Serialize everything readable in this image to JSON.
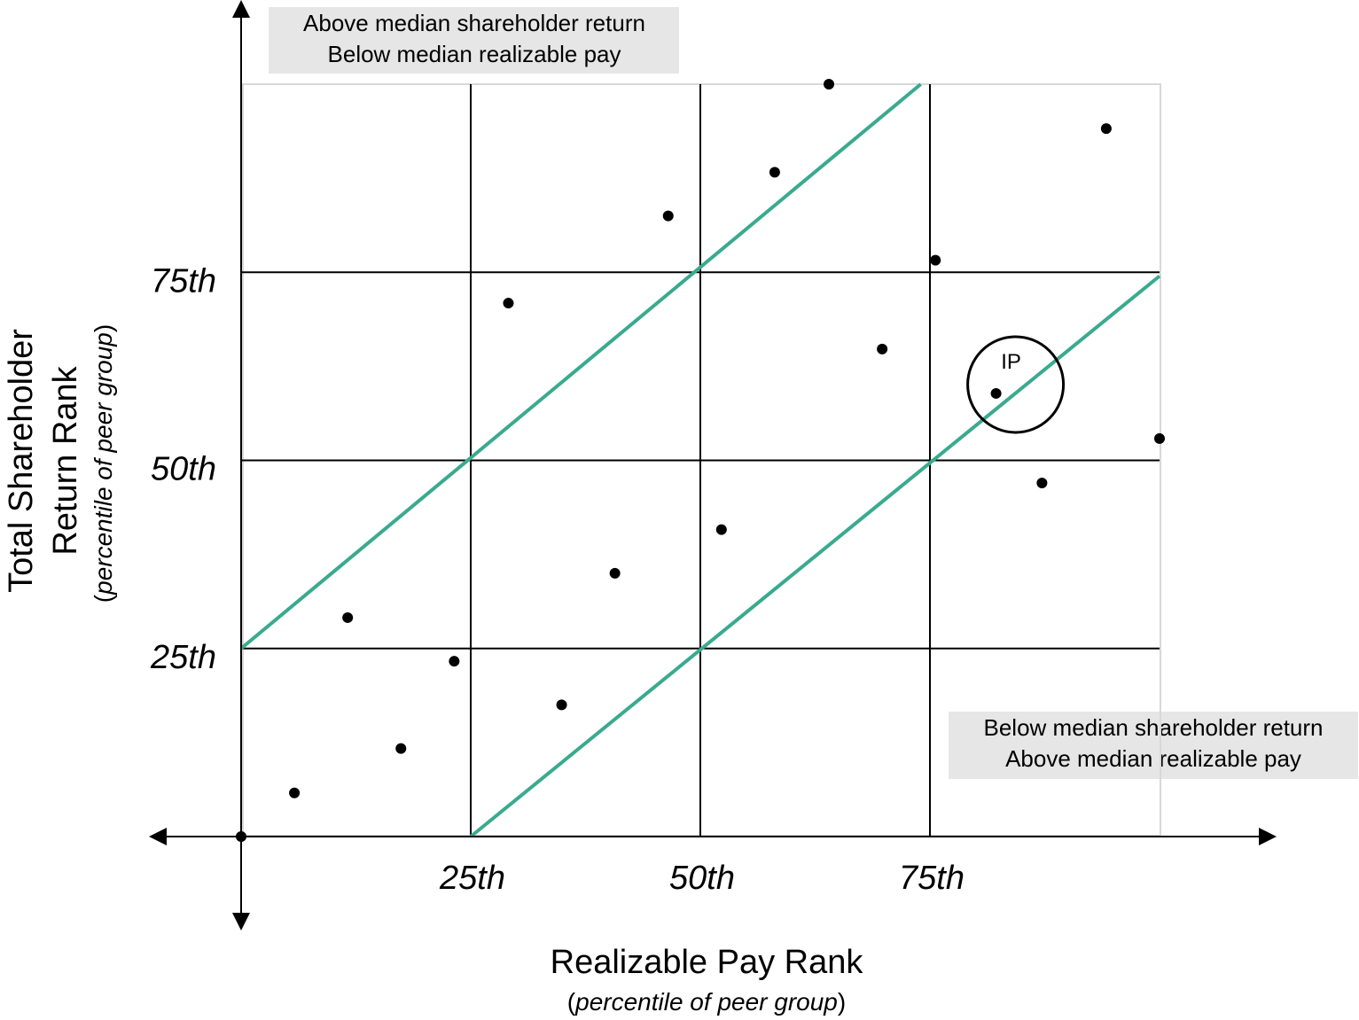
{
  "chart_data": {
    "type": "scatter",
    "xlabel": "Realizable Pay Rank",
    "xlabel_sub": "percentile of peer group",
    "ylabel_line1": "Total Shareholder",
    "ylabel_line2": "Return Rank",
    "ylabel_sub": "percentile of peer group",
    "xlim": [
      0,
      100
    ],
    "ylim": [
      0,
      100
    ],
    "x_ticks": [
      {
        "value": 25,
        "label": "25th"
      },
      {
        "value": 50,
        "label": "50th"
      },
      {
        "value": 75,
        "label": "75th"
      }
    ],
    "y_ticks": [
      {
        "value": 25,
        "label": "25th"
      },
      {
        "value": 50,
        "label": "50th"
      },
      {
        "value": 75,
        "label": "75th"
      }
    ],
    "grid": true,
    "points": [
      {
        "x": 0,
        "y": 0
      },
      {
        "x": 5.8,
        "y": 5.8
      },
      {
        "x": 11.6,
        "y": 29.1
      },
      {
        "x": 17.4,
        "y": 11.7
      },
      {
        "x": 23.2,
        "y": 23.3
      },
      {
        "x": 29.1,
        "y": 70.9
      },
      {
        "x": 34.9,
        "y": 17.5
      },
      {
        "x": 40.7,
        "y": 35.0
      },
      {
        "x": 46.5,
        "y": 82.5
      },
      {
        "x": 52.3,
        "y": 40.8
      },
      {
        "x": 58.1,
        "y": 88.3
      },
      {
        "x": 64.0,
        "y": 100.0
      },
      {
        "x": 69.8,
        "y": 64.8
      },
      {
        "x": 75.6,
        "y": 76.6
      },
      {
        "x": 82.2,
        "y": 58.9
      },
      {
        "x": 87.2,
        "y": 47.0
      },
      {
        "x": 94.2,
        "y": 94.1
      },
      {
        "x": 100.0,
        "y": 52.9
      }
    ],
    "bands": [
      {
        "x_start": 0,
        "y_start": 25,
        "x_end": 74,
        "y_end": 100
      },
      {
        "x_start": 25,
        "y_start": 0,
        "x_end": 100,
        "y_end": 74.5
      }
    ],
    "highlight": {
      "label": "IP",
      "x": 82.2,
      "y": 58.9
    },
    "annotations": {
      "top_left": [
        "Above median shareholder return",
        "Below median realizable pay"
      ],
      "bottom_right": [
        "Below median shareholder return",
        "Above median realizable pay"
      ]
    },
    "colors": {
      "band_line": "#3aaa8f",
      "grid": "#000000",
      "point": "#000000",
      "box": "#e6e6e6"
    }
  }
}
